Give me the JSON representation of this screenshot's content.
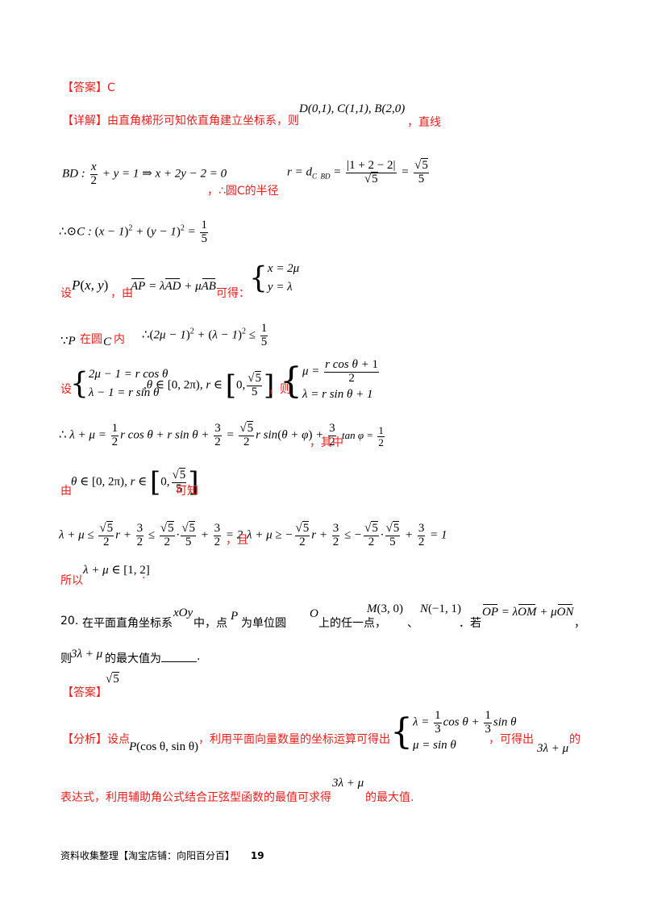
{
  "answer19": {
    "label": "【答案】",
    "value": "C"
  },
  "detail19": {
    "label": "【详解】",
    "intro": "由直角梯形可知依直角建立坐标系，则",
    "points": "D(0,1), C(1,1), B(2,0)",
    "suffix": "，直线",
    "line_bd": "BD: x/2 + y = 1 ⇒ x + 2y − 2 = 0",
    "therefore_radius": "，∴圆C的半径",
    "radius": "r = d_{C BD} = |1+2−2|/√5 = √5/5",
    "circle_eq": "∴⊙C: (x−1)² + (y−1)² = 1/5",
    "set_p": "设",
    "p_xy": "P(x, y)",
    "from": "，由",
    "vector_eq": "AP = λAD + μAB",
    "obtain": "可得：",
    "system1": "x = 2μ ; y = λ",
    "since_p": "∵P",
    "in_circle": "在圆",
    "circle_c": "C",
    "inside": "内",
    "inequality": "∴(2μ−1)² + (λ−1)² ≤ 1/5",
    "set": "设",
    "param_system": "2μ−1 = r cosθ ; λ−1 = r sinθ , θ∈[0,2π), r∈[0, √5/5]",
    "then": "，则",
    "solved_system": "μ = (r cosθ + 1)/2 ; λ = r sinθ + 1",
    "sum_expr": "∴ λ + μ = 1/2 r cosθ + r sinθ + 3/2 = √5/2 r sin(θ+φ) + 3/2",
    "where": "，其中",
    "tan_phi": "tanφ = 1/2",
    "from2": "由",
    "range_cond": "θ∈[0,2π), r∈[0, √5/5]",
    "known": "可知",
    "upper_bound": "λ + μ ≤ √5/2 r + 3/2 ≤ √5/2 · √5/5 + 3/2 = 2",
    "and": "，且",
    "lower_bound": "λ + μ ≥ −√5/2 r + 3/2 ≤ −√5/2 · √5/5 + 3/2 = 1",
    "so": "所以",
    "conclusion": "λ + μ ∈ [1,2]",
    "period": "."
  },
  "q20": {
    "number": "20.",
    "text1": "在平面直角坐标系",
    "xoy": "xOy",
    "text2": "中，点",
    "p": "P",
    "text3": "为单位圆",
    "o": "O",
    "text4": "上的任一点，",
    "m": "M(3,0)",
    "sep": "、",
    "n": "N(−1,1)",
    "text5": "．若",
    "vector_eq": "OP = λOM + μON",
    "comma": "，",
    "then": "则",
    "expr": "3λ + μ",
    "text6": "的最大值为",
    "end": "."
  },
  "answer20": {
    "label": "【答案】",
    "value": "√5"
  },
  "analysis20": {
    "label": "【分析】",
    "set_point": "设点",
    "p_coords": "P(cosθ, sinθ)",
    "text1": "，利用平面向量数量的坐标运算可得出",
    "system": "λ = 1/3 cosθ + 1/3 sinθ ; μ = sinθ",
    "text2": "，可得出",
    "expr": "3λ + μ",
    "of": "的",
    "text3": "表达式，利用辅助角公式结合正弦型函数的最值可求得",
    "expr2": "3λ + μ",
    "text4": "的最大值."
  },
  "footer": {
    "text": "资料收集整理【淘宝店铺：向阳百分百】",
    "page": "19"
  }
}
